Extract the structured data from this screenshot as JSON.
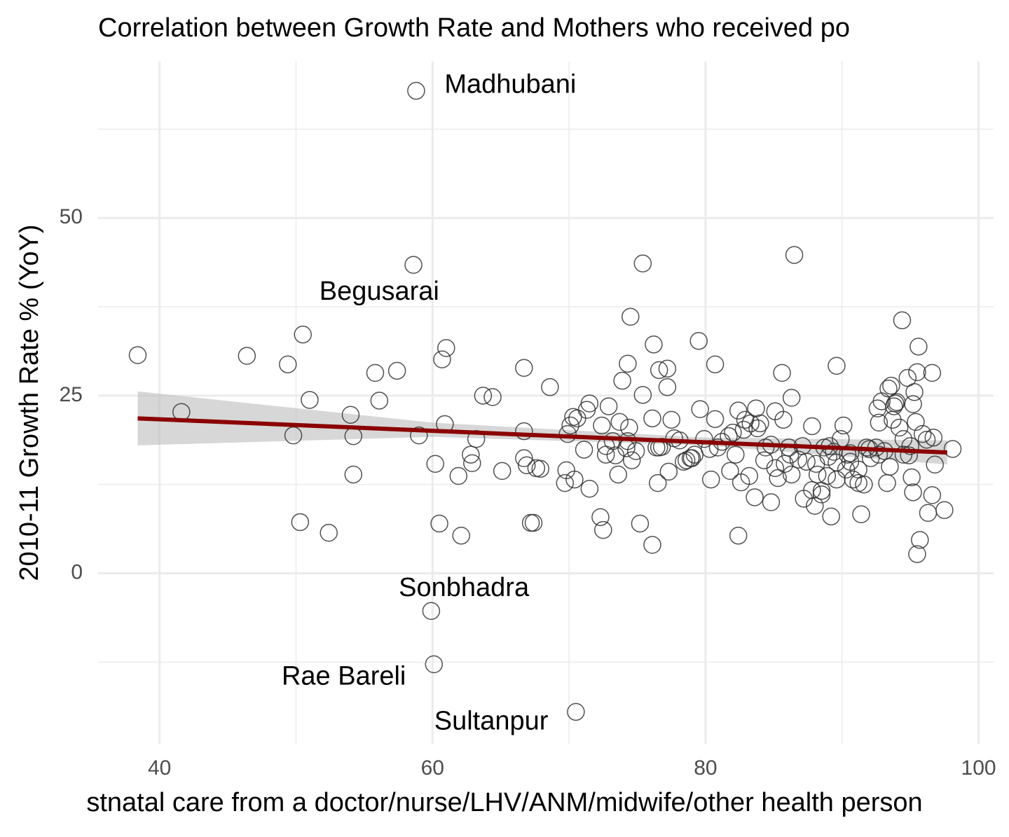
{
  "chart_data": {
    "type": "scatter",
    "title": "Correlation between Growth Rate and Mothers who received po",
    "x_label": "stnatal care from a doctor/nurse/LHV/ANM/midwife/other health person",
    "y_label": "2010-11 Growth Rate % (YoY)",
    "xlim": [
      35.5,
      101.1
    ],
    "ylim": [
      -24,
      72
    ],
    "xticks": [
      40,
      60,
      80,
      100
    ],
    "yticks": [
      0,
      25,
      50
    ],
    "x_minor_ticks": [
      50,
      70,
      90
    ],
    "y_minor_ticks": [
      -12.5,
      12.5,
      37.5,
      62.5
    ],
    "grid": true,
    "point_color": "#333333",
    "line_color": "#8b0000",
    "band_color": "#bdbdbd",
    "x": [
      38.4,
      41.6,
      46.4,
      49.4,
      50.5,
      49.8,
      51.0,
      50.3,
      52.4,
      54.0,
      54.2,
      54.2,
      55.8,
      56.1,
      57.4,
      58.6,
      58.8,
      59.0,
      60.2,
      60.5,
      60.7,
      61.0,
      60.9,
      61.9,
      62.1,
      62.8,
      62.9,
      63.2,
      63.7,
      64.4,
      65.1,
      66.7,
      66.7,
      66.7,
      66.9,
      67.2,
      67.4,
      67.6,
      67.9,
      68.6,
      69.7,
      69.8,
      70.1,
      70.3,
      70.6,
      71.1,
      71.3,
      71.5,
      71.5,
      72.3,
      72.5,
      72.4,
      72.7,
      72.7,
      72.9,
      73.4,
      73.6,
      73.7,
      73.9,
      74.3,
      74.2,
      74.4,
      74.5,
      74.6,
      74.9,
      75.2,
      75.4,
      75.4,
      76.1,
      76.1,
      76.2,
      76.4,
      76.5,
      76.6,
      76.8,
      77.2,
      77.2,
      77.3,
      77.5,
      77.7,
      78.1,
      78.6,
      78.9,
      79.2,
      79.5,
      79.6,
      79.9,
      80.3,
      80.4,
      80.7,
      80.7,
      81.2,
      81.8,
      82.0,
      82.2,
      82.4,
      82.4,
      82.6,
      82.8,
      83.3,
      83.6,
      83.7,
      83.8,
      84.3,
      84.8,
      84.8,
      85.1,
      85.1,
      85.6,
      85.7,
      85.8,
      86.1,
      86.3,
      86.3,
      86.5,
      87.1,
      87.2,
      87.4,
      87.8,
      88.0,
      88.2,
      88.5,
      88.7,
      89.0,
      89.2,
      89.4,
      89.6,
      89.6,
      89.9,
      90.1,
      90.3,
      90.6,
      90.8,
      91.2,
      91.4,
      91.6,
      91.8,
      92.1,
      92.6,
      92.7,
      92.9,
      93.1,
      93.3,
      93.5,
      93.6,
      93.8,
      94.0,
      94.2,
      94.4,
      94.5,
      94.8,
      95.0,
      95.2,
      95.2,
      95.3,
      95.4,
      95.6,
      95.5,
      95.7,
      95.5,
      95.9,
      96.3,
      96.6,
      96.6,
      96.8,
      96.7,
      97.5,
      98.1,
      89.1,
      89.6,
      88.1,
      86.8,
      85.3,
      83.2,
      81.7,
      80.9,
      78.4,
      76.6,
      74.3,
      73.2,
      70.4,
      69.9,
      87.8,
      90.4,
      92.7,
      93.4,
      93.9,
      94.9,
      96.2,
      95.1,
      92.0,
      91.2,
      88.5,
      88.9,
      79.0,
      82.9,
      84.0,
      84.4,
      86.2,
      90.6,
      92.5,
      93.7,
      94.5,
      59.9,
      60.1,
      70.5
    ],
    "y": [
      30.7,
      22.7,
      30.6,
      29.4,
      33.6,
      19.4,
      24.4,
      7.2,
      5.7,
      22.3,
      19.3,
      13.9,
      28.2,
      24.3,
      28.5,
      43.4,
      67.9,
      19.4,
      15.4,
      7.0,
      30.1,
      31.7,
      21.0,
      13.7,
      5.3,
      16.7,
      15.5,
      18.9,
      25.0,
      24.8,
      14.4,
      28.9,
      20.0,
      16.2,
      15.2,
      7.1,
      7.1,
      14.8,
      14.7,
      26.2,
      12.7,
      14.5,
      20.8,
      22.0,
      21.8,
      17.4,
      23.0,
      23.9,
      11.9,
      7.9,
      6.1,
      20.8,
      17.9,
      16.7,
      23.5,
      16.6,
      13.9,
      21.3,
      27.1,
      29.5,
      17.6,
      20.5,
      36.1,
      15.9,
      17.2,
      7.0,
      25.1,
      43.6,
      4.0,
      21.8,
      32.2,
      17.7,
      12.7,
      28.6,
      17.8,
      28.8,
      26.2,
      14.3,
      21.6,
      19.0,
      18.7,
      15.9,
      16.2,
      16.7,
      32.7,
      23.1,
      18.9,
      17.5,
      13.2,
      29.4,
      21.7,
      18.5,
      14.4,
      19.8,
      16.7,
      5.3,
      22.9,
      12.8,
      20.2,
      21.1,
      10.7,
      23.2,
      20.4,
      15.9,
      10.0,
      18.1,
      14.8,
      22.8,
      28.2,
      21.6,
      15.4,
      17.7,
      13.9,
      24.7,
      44.8,
      17.9,
      10.5,
      15.7,
      20.7,
      9.5,
      13.9,
      11.6,
      17.7,
      16.4,
      8.0,
      17.1,
      29.2,
      13.2,
      18.9,
      20.8,
      14.6,
      15.7,
      13.2,
      14.6,
      8.3,
      12.5,
      17.7,
      16.2,
      23.2,
      21.2,
      24.2,
      17.2,
      12.7,
      15.0,
      26.4,
      23.5,
      24.1,
      20.5,
      35.6,
      18.9,
      27.5,
      17.9,
      11.4,
      23.8,
      25.5,
      21.3,
      31.9,
      28.3,
      4.7,
      2.7,
      19.6,
      8.5,
      11.0,
      28.2,
      15.3,
      19.1,
      8.9,
      17.5,
      17.9,
      15.6,
      15.4,
      16.0,
      13.4,
      13.7,
      19.3,
      17.7,
      15.7,
      17.7,
      18.6,
      18.6,
      13.2,
      19.6,
      11.7,
      16.7,
      16.7,
      26.0,
      23.9,
      16.6,
      18.8,
      13.5,
      17.5,
      12.7,
      11.1,
      13.7,
      16.2,
      21.6,
      21.1,
      17.7,
      16.7,
      16.9,
      17.7,
      21.6,
      16.7,
      -5.3,
      -12.8,
      -19.5
    ],
    "trend_line": {
      "x": [
        38.4,
        97.7
      ],
      "y": [
        21.8,
        17.0
      ]
    },
    "confidence_band": {
      "x": [
        38.4,
        60,
        80,
        97.7
      ],
      "lower": [
        18.0,
        19.2,
        18.0,
        15.3
      ],
      "upper": [
        25.6,
        21.2,
        19.1,
        18.7
      ]
    },
    "annotations": [
      {
        "text": "Madhubani",
        "x": 65.7,
        "y": 68.6
      },
      {
        "text": "Begusarai",
        "x": 56.1,
        "y": 39.5
      },
      {
        "text": "Sonbhadra",
        "x": 62.3,
        "y": -2.2
      },
      {
        "text": "Rae Bareli",
        "x": 53.5,
        "y": -14.7
      },
      {
        "text": "Sultanpur",
        "x": 64.3,
        "y": -21.0
      }
    ]
  }
}
